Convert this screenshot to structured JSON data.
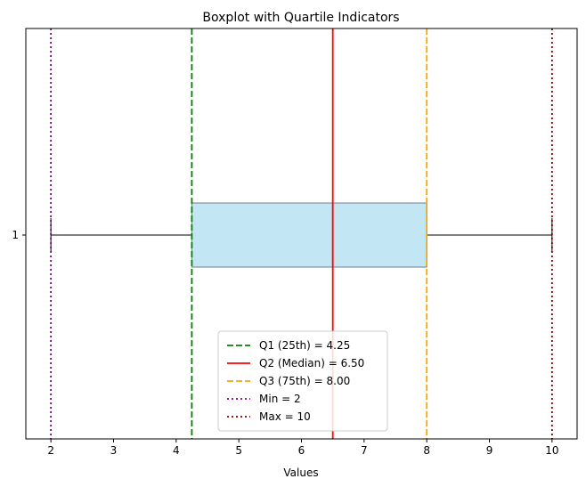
{
  "chart_data": {
    "type": "boxplot",
    "title": "Boxplot with Quartile Indicators",
    "xlabel": "Values",
    "ylabel": "",
    "xlim": [
      1.6,
      10.4
    ],
    "x_ticks": [
      2,
      3,
      4,
      5,
      6,
      7,
      8,
      9,
      10
    ],
    "y_ticks": [
      "1"
    ],
    "grid": false,
    "orientation": "horizontal",
    "box": {
      "position": "1",
      "min": 2,
      "q1": 4.25,
      "median": 6.5,
      "q3": 8.0,
      "max": 10,
      "fill": "#c3e6f5",
      "edge": "#6f7f88",
      "median_color": "#ff7f0e"
    },
    "lines": [
      {
        "x": 4.25,
        "label": "Q1 (25th) = 4.25",
        "color": "#008000",
        "style": "dashed"
      },
      {
        "x": 6.5,
        "label": "Q2 (Median) = 6.50",
        "color": "#ff0000",
        "style": "solid"
      },
      {
        "x": 8.0,
        "label": "Q3 (75th) = 8.00",
        "color": "#ffa500",
        "style": "dashed"
      },
      {
        "x": 2,
        "label": "Min = 2",
        "color": "#800080",
        "style": "dotted"
      },
      {
        "x": 10,
        "label": "Max = 10",
        "color": "#800000",
        "style": "dotted"
      }
    ],
    "legend_position": "lower-center"
  }
}
